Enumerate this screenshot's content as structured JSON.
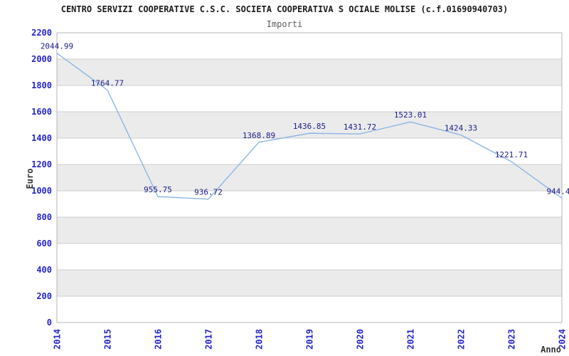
{
  "chart_data": {
    "type": "line",
    "title": "CENTRO SERVIZI COOPERATIVE C.S.C. SOCIETA COOPERATIVA S OCIALE MOLISE (c.f.01690940703)",
    "subtitle": "Importi",
    "xlabel": "Anno",
    "ylabel": "Euro",
    "categories": [
      "2014",
      "2015",
      "2016",
      "2017",
      "2018",
      "2019",
      "2020",
      "2021",
      "2022",
      "2023",
      "2024"
    ],
    "series": [
      {
        "name": "Importi",
        "values": [
          2044.99,
          1764.77,
          955.75,
          936.72,
          1368.89,
          1436.85,
          1431.72,
          1523.01,
          1424.33,
          1221.71,
          944.4
        ],
        "labels": [
          "2044.99",
          "1764.77",
          "955.75",
          "936.72",
          "1368.89",
          "1436.85",
          "1431.72",
          "1523.01",
          "1424.33",
          "1221.71",
          "944.4"
        ]
      }
    ],
    "ylim": [
      0,
      2200
    ],
    "ytick_step": 200,
    "yticks": [
      0,
      200,
      400,
      600,
      800,
      1000,
      1200,
      1400,
      1600,
      1800,
      2000,
      2200
    ],
    "grid": true,
    "legend_position": "none",
    "colors": {
      "line": "#85b3e6",
      "band": "#ebebeb",
      "gridline": "#cccccc",
      "border": "#b5b5b5",
      "tick_label": "#2525cd",
      "point_label": "#1c1c88",
      "axis_title": "#333333",
      "title": "#1b1b1b",
      "subtitle": "#5c5c5c"
    }
  }
}
